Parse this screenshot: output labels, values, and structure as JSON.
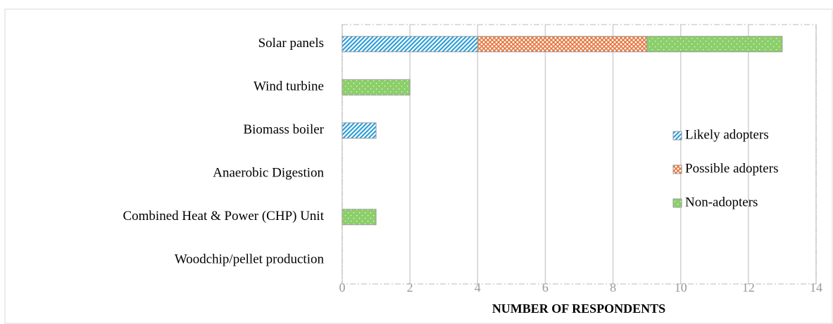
{
  "chart_data": {
    "type": "bar",
    "orientation": "horizontal",
    "stacked": true,
    "categories": [
      "Solar panels",
      "Wind turbine",
      "Biomass boiler",
      "Anaerobic Digestion",
      "Combined Heat & Power (CHP) Unit",
      "Woodchip/pellet production"
    ],
    "series": [
      {
        "name": "Likely adopters",
        "color": "#2e9fd8",
        "values": [
          4,
          0,
          1,
          0,
          0,
          0
        ]
      },
      {
        "name": "Possible adopters",
        "color": "#e8743b",
        "values": [
          5,
          0,
          0,
          0,
          0,
          0
        ]
      },
      {
        "name": "Non-adopters",
        "color": "#8ccf6a",
        "values": [
          4,
          2,
          0,
          0,
          1,
          0
        ]
      }
    ],
    "xlabel": "NUMBER OF RESPONDENTS",
    "xlim": [
      0,
      14
    ],
    "xticks": [
      0,
      2,
      4,
      6,
      8,
      10,
      12,
      14
    ],
    "grid": true,
    "legend": "right"
  }
}
